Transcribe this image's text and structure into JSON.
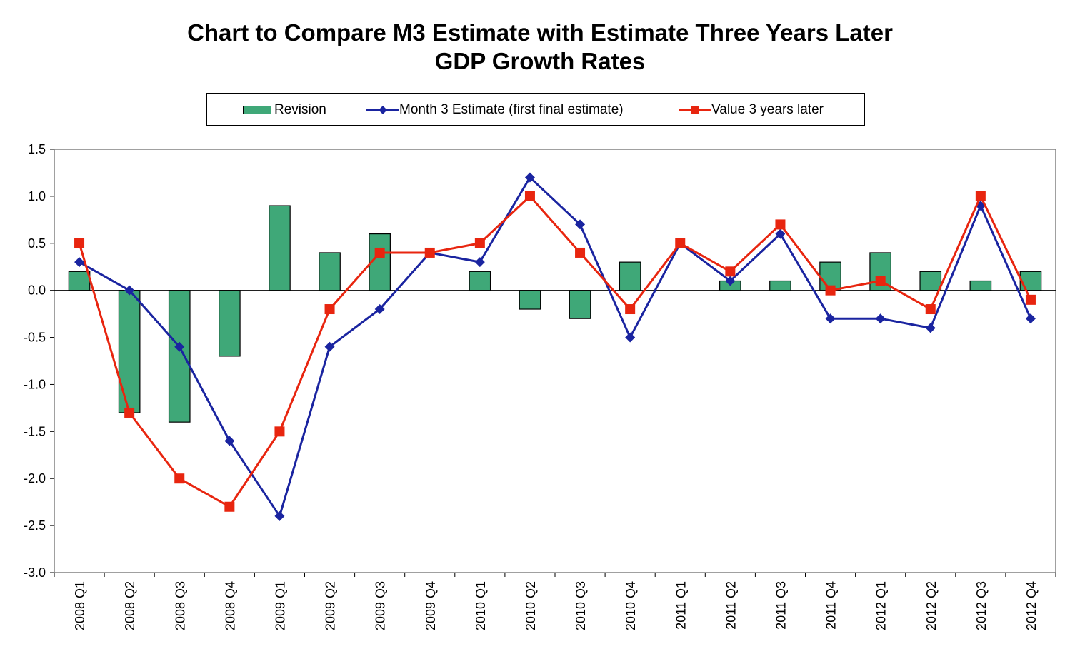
{
  "chart_data": {
    "type": "bar",
    "title": "Chart to Compare M3 Estimate with Estimate Three Years Later",
    "subtitle": "GDP Growth Rates",
    "categories": [
      "2008 Q1",
      "2008 Q2",
      "2008 Q3",
      "2008 Q4",
      "2009 Q1",
      "2009 Q2",
      "2009 Q3",
      "2009 Q4",
      "2010 Q1",
      "2010 Q2",
      "2010 Q3",
      "2010 Q4",
      "2011 Q1",
      "2011 Q2",
      "2011 Q3",
      "2011 Q4",
      "2012 Q1",
      "2012 Q2",
      "2012 Q3",
      "2012 Q4"
    ],
    "ylim": [
      -3.0,
      1.5
    ],
    "yticks": [
      "1.5",
      "1.0",
      "0.5",
      "0.0",
      "-0.5",
      "-1.0",
      "-1.5",
      "-2.0",
      "-2.5",
      "-3.0"
    ],
    "legend_position": "top",
    "series": [
      {
        "name": "Revision",
        "kind": "bar",
        "color": "#3fa878",
        "values": [
          0.2,
          -1.3,
          -1.4,
          -0.7,
          0.9,
          0.4,
          0.6,
          0.0,
          0.2,
          -0.2,
          -0.3,
          0.3,
          0.0,
          0.1,
          0.1,
          0.3,
          0.4,
          0.2,
          0.1,
          0.2
        ]
      },
      {
        "name": "Month 3 Estimate (first final estimate)",
        "kind": "line",
        "marker": "diamond",
        "color": "#1a24a0",
        "values": [
          0.3,
          0.0,
          -0.6,
          -1.6,
          -2.4,
          -0.6,
          -0.2,
          0.4,
          0.3,
          1.2,
          0.7,
          -0.5,
          0.5,
          0.1,
          0.6,
          -0.3,
          -0.3,
          -0.4,
          0.9,
          -0.3
        ]
      },
      {
        "name": "Value 3 years later",
        "kind": "line",
        "marker": "square",
        "color": "#e8250f",
        "values": [
          0.5,
          -1.3,
          -2.0,
          -2.3,
          -1.5,
          -0.2,
          0.4,
          0.4,
          0.5,
          1.0,
          0.4,
          -0.2,
          0.5,
          0.2,
          0.7,
          0.0,
          0.1,
          -0.2,
          1.0,
          -0.1
        ]
      }
    ]
  }
}
